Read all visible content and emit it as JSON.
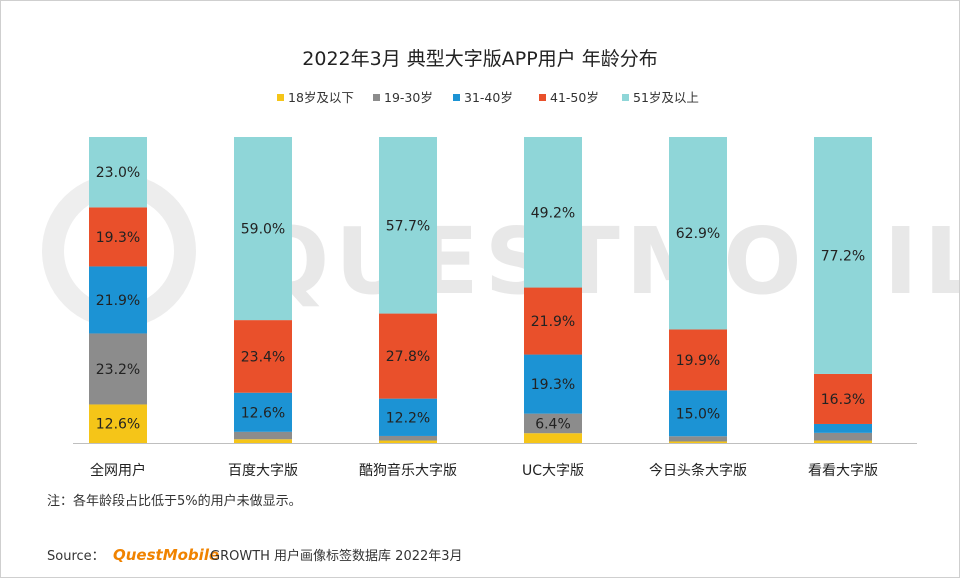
{
  "chart_data": {
    "type": "bar",
    "stacked": true,
    "title": "2022年3月 典型大字版APP用户 年龄分布",
    "categories": [
      "全网用户",
      "百度大字版",
      "酷狗音乐大字版",
      "UC大字版",
      "今日头条大字版",
      "看看大字版"
    ],
    "ylim": [
      0,
      100
    ],
    "legend_position": "top-center",
    "grid": false,
    "series": [
      {
        "name": "18岁及以下",
        "color": "#f5c518",
        "values": [
          12.6,
          1.2,
          0.8,
          3.2,
          0.5,
          0.8
        ],
        "labels": [
          "12.6%",
          "",
          "",
          "",
          "",
          ""
        ]
      },
      {
        "name": "19-30岁",
        "color": "#8c8c8c",
        "values": [
          23.2,
          2.4,
          1.5,
          6.4,
          1.7,
          2.5
        ],
        "labels": [
          "23.2%",
          "",
          "",
          "6.4%",
          "",
          ""
        ]
      },
      {
        "name": "31-40岁",
        "color": "#1c93d4",
        "values": [
          21.9,
          12.6,
          12.2,
          19.3,
          15.0,
          2.9
        ],
        "labels": [
          "21.9%",
          "12.6%",
          "12.2%",
          "19.3%",
          "15.0%",
          ""
        ]
      },
      {
        "name": "41-50岁",
        "color": "#e9502b",
        "values": [
          19.3,
          23.4,
          27.8,
          21.9,
          19.9,
          16.3
        ],
        "labels": [
          "19.3%",
          "23.4%",
          "27.8%",
          "21.9%",
          "19.9%",
          "16.3%"
        ]
      },
      {
        "name": "51岁及以上",
        "color": "#8fd6d8",
        "values": [
          23.0,
          59.0,
          57.7,
          49.2,
          62.9,
          77.2
        ],
        "labels": [
          "23.0%",
          "59.0%",
          "57.7%",
          "49.2%",
          "62.9%",
          "77.2%"
        ]
      }
    ]
  },
  "note": "注：各年龄段占比低于5%的用户未做显示。",
  "source": {
    "prefix": "Source：",
    "brand": "QuestMobile",
    "text": "GROWTH 用户画像标签数据库 2022年3月"
  },
  "watermark": "QUESTMOBILE"
}
